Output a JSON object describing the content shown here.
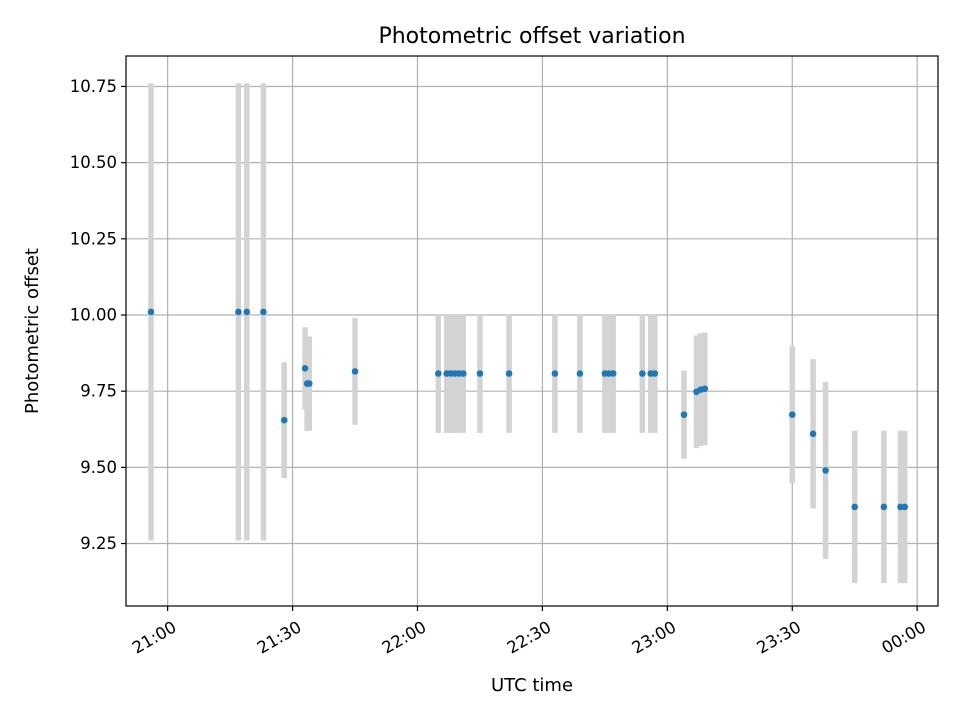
{
  "chart_data": {
    "type": "scatter",
    "title": "Photometric offset variation",
    "xlabel": "UTC time",
    "ylabel": "Photometric offset",
    "x_unit": "UTC time",
    "xlim": [
      "20:50",
      "00:05"
    ],
    "ylim": [
      9.045,
      10.85
    ],
    "x_ticks": [
      "21:00",
      "21:30",
      "22:00",
      "22:30",
      "23:00",
      "23:30",
      "00:00"
    ],
    "y_ticks": [
      "9.25",
      "9.50",
      "9.75",
      "10.00",
      "10.25",
      "10.50",
      "10.75"
    ],
    "grid": true,
    "legend": "none",
    "colors": {
      "point": "#1f77b4",
      "error_bar": "#d3d3d3",
      "grid": "#b0b0b0"
    },
    "series": [
      {
        "points": [
          {
            "x": "20:56",
            "y": 10.01,
            "err": 0.75
          },
          {
            "x": "21:17",
            "y": 10.01,
            "err": 0.75
          },
          {
            "x": "21:19",
            "y": 10.01,
            "err": 0.75
          },
          {
            "x": "21:23",
            "y": 10.01,
            "err": 0.75
          },
          {
            "x": "21:28",
            "y": 9.655,
            "err": 0.19
          },
          {
            "x": "21:33",
            "y": 9.825,
            "err": 0.135
          },
          {
            "x": "21:33:30",
            "y": 9.775,
            "err": 0.155
          },
          {
            "x": "21:34",
            "y": 9.775,
            "err": 0.155
          },
          {
            "x": "21:45",
            "y": 9.815,
            "err": 0.175
          },
          {
            "x": "22:05",
            "y": 9.808,
            "err": 0.195
          },
          {
            "x": "22:07",
            "y": 9.808,
            "err": 0.195
          },
          {
            "x": "22:08",
            "y": 9.808,
            "err": 0.195
          },
          {
            "x": "22:09",
            "y": 9.808,
            "err": 0.195
          },
          {
            "x": "22:10",
            "y": 9.808,
            "err": 0.195
          },
          {
            "x": "22:11",
            "y": 9.808,
            "err": 0.195
          },
          {
            "x": "22:15",
            "y": 9.808,
            "err": 0.195
          },
          {
            "x": "22:22",
            "y": 9.808,
            "err": 0.195
          },
          {
            "x": "22:33",
            "y": 9.808,
            "err": 0.195
          },
          {
            "x": "22:39",
            "y": 9.808,
            "err": 0.195
          },
          {
            "x": "22:45",
            "y": 9.808,
            "err": 0.195
          },
          {
            "x": "22:46",
            "y": 9.808,
            "err": 0.195
          },
          {
            "x": "22:47",
            "y": 9.808,
            "err": 0.195
          },
          {
            "x": "22:54",
            "y": 9.808,
            "err": 0.195
          },
          {
            "x": "22:56",
            "y": 9.808,
            "err": 0.195
          },
          {
            "x": "22:57",
            "y": 9.808,
            "err": 0.195
          },
          {
            "x": "23:04",
            "y": 9.673,
            "err": 0.145
          },
          {
            "x": "23:07",
            "y": 9.748,
            "err": 0.185
          },
          {
            "x": "23:08",
            "y": 9.755,
            "err": 0.185
          },
          {
            "x": "23:09",
            "y": 9.758,
            "err": 0.185
          },
          {
            "x": "23:30",
            "y": 9.673,
            "err": 0.225
          },
          {
            "x": "23:35",
            "y": 9.61,
            "err": 0.245
          },
          {
            "x": "23:38",
            "y": 9.49,
            "err": 0.29
          },
          {
            "x": "23:45",
            "y": 9.37,
            "err": 0.25
          },
          {
            "x": "23:52",
            "y": 9.37,
            "err": 0.25
          },
          {
            "x": "23:56",
            "y": 9.37,
            "err": 0.25
          },
          {
            "x": "23:57",
            "y": 9.37,
            "err": 0.25
          }
        ]
      }
    ]
  }
}
